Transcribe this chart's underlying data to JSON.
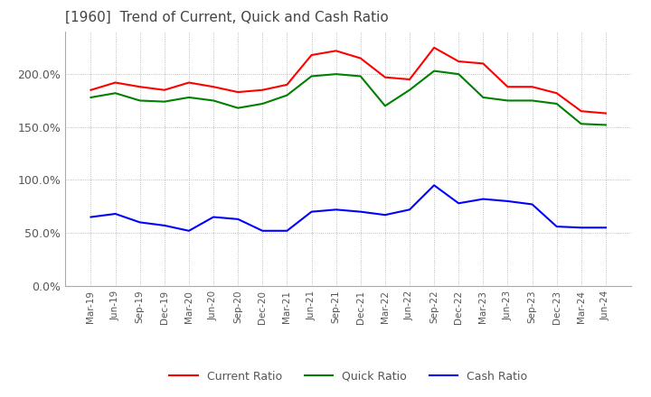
{
  "title": "[1960]  Trend of Current, Quick and Cash Ratio",
  "title_fontsize": 11,
  "ylim": [
    0,
    240
  ],
  "yticks": [
    0,
    50,
    100,
    150,
    200
  ],
  "ytick_labels": [
    "0.0%",
    "50.0%",
    "100.0%",
    "150.0%",
    "200.0%"
  ],
  "background_color": "#ffffff",
  "grid_color": "#aaaaaa",
  "dates": [
    "Mar-19",
    "Jun-19",
    "Sep-19",
    "Dec-19",
    "Mar-20",
    "Jun-20",
    "Sep-20",
    "Dec-20",
    "Mar-21",
    "Jun-21",
    "Sep-21",
    "Dec-21",
    "Mar-22",
    "Jun-22",
    "Sep-22",
    "Dec-22",
    "Mar-23",
    "Jun-23",
    "Sep-23",
    "Dec-23",
    "Mar-24",
    "Jun-24"
  ],
  "current_ratio": [
    185,
    192,
    188,
    185,
    192,
    188,
    183,
    185,
    190,
    218,
    222,
    215,
    197,
    195,
    225,
    212,
    210,
    188,
    188,
    182,
    165,
    163
  ],
  "quick_ratio": [
    178,
    182,
    175,
    174,
    178,
    175,
    168,
    172,
    180,
    198,
    200,
    198,
    170,
    185,
    203,
    200,
    178,
    175,
    175,
    172,
    153,
    152
  ],
  "cash_ratio": [
    65,
    68,
    60,
    57,
    52,
    65,
    63,
    52,
    52,
    70,
    72,
    70,
    67,
    72,
    95,
    78,
    82,
    80,
    77,
    56,
    55,
    55
  ],
  "current_color": "#ff0000",
  "quick_color": "#008000",
  "cash_color": "#0000ff",
  "line_width": 1.5,
  "legend_labels": [
    "Current Ratio",
    "Quick Ratio",
    "Cash Ratio"
  ],
  "title_color": "#444444"
}
